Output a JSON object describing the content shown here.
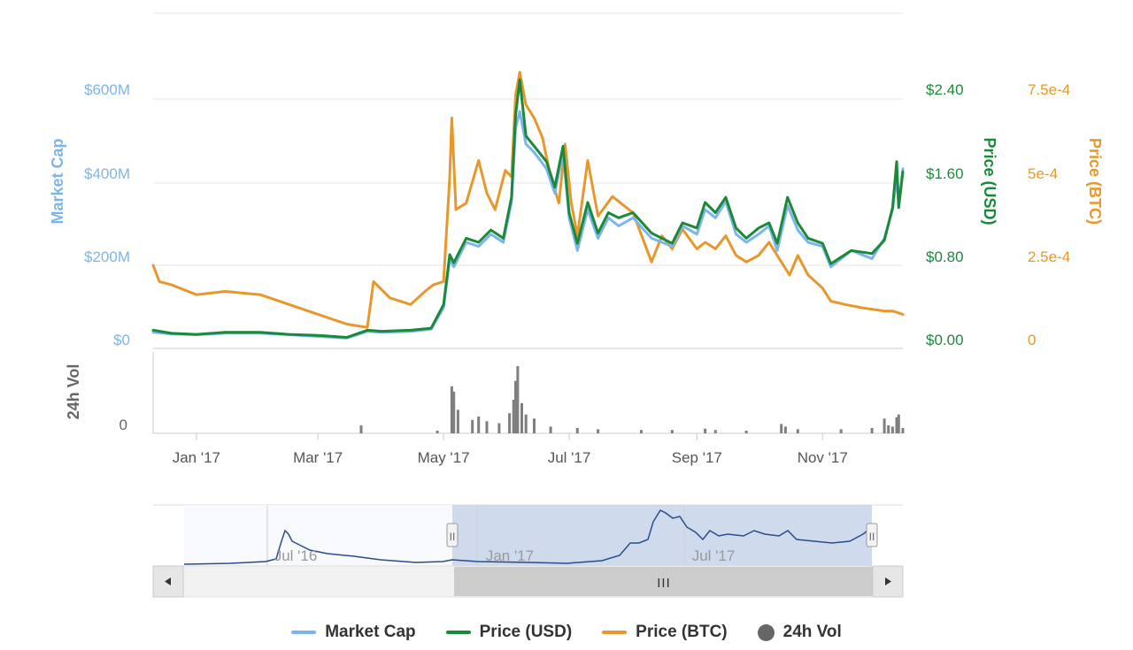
{
  "chart_data": {
    "type": "line",
    "title": "",
    "x_ticks": [
      "Jan '17",
      "Mar '17",
      "May '17",
      "Jul '17",
      "Sep '17",
      "Nov '17"
    ],
    "x_range": [
      "2016-12-11",
      "2017-12-10"
    ],
    "axes": {
      "market_cap": {
        "label": "Market Cap",
        "ticks": [
          "$0",
          "$200M",
          "$400M",
          "$600M"
        ],
        "range": [
          0,
          800000000
        ],
        "color": "#7cb5ec"
      },
      "price_usd": {
        "label": "Price (USD)",
        "ticks": [
          "$0.00",
          "$0.80",
          "$1.60",
          "$2.40"
        ],
        "range": [
          0,
          3.2
        ],
        "color": "#1a8a3a"
      },
      "price_btc": {
        "label": "Price (BTC)",
        "ticks": [
          "0",
          "2.5e-4",
          "5e-4",
          "7.5e-4"
        ],
        "range": [
          0,
          0.001
        ],
        "color": "#e8972a"
      },
      "volume": {
        "label": "24h Vol",
        "ticks": [
          "0"
        ],
        "color": "#666666"
      }
    },
    "series": [
      {
        "name": "Market Cap",
        "color": "#7cb5ec",
        "x": [
          "2016-12-11",
          "2016-12-20",
          "2017-01-01",
          "2017-01-15",
          "2017-02-01",
          "2017-02-15",
          "2017-03-01",
          "2017-03-15",
          "2017-03-25",
          "2017-04-01",
          "2017-04-15",
          "2017-04-25",
          "2017-05-01",
          "2017-05-04",
          "2017-05-06",
          "2017-05-12",
          "2017-05-18",
          "2017-05-24",
          "2017-05-30",
          "2017-06-03",
          "2017-06-05",
          "2017-06-07",
          "2017-06-10",
          "2017-06-14",
          "2017-06-20",
          "2017-06-24",
          "2017-06-28",
          "2017-07-01",
          "2017-07-05",
          "2017-07-10",
          "2017-07-15",
          "2017-07-20",
          "2017-07-25",
          "2017-08-01",
          "2017-08-10",
          "2017-08-20",
          "2017-08-25",
          "2017-09-01",
          "2017-09-05",
          "2017-09-10",
          "2017-09-15",
          "2017-09-20",
          "2017-09-25",
          "2017-10-01",
          "2017-10-06",
          "2017-10-10",
          "2017-10-15",
          "2017-10-20",
          "2017-10-25",
          "2017-11-01",
          "2017-11-05",
          "2017-11-15",
          "2017-11-25",
          "2017-12-01",
          "2017-12-05",
          "2017-12-07",
          "2017-12-08",
          "2017-12-10"
        ],
        "values": [
          20000000,
          16000000,
          14000000,
          18000000,
          18000000,
          14000000,
          10000000,
          6000000,
          22000000,
          20000000,
          22000000,
          28000000,
          80000000,
          200000000,
          180000000,
          240000000,
          230000000,
          260000000,
          240000000,
          340000000,
          520000000,
          560000000,
          480000000,
          460000000,
          420000000,
          360000000,
          460000000,
          300000000,
          220000000,
          320000000,
          250000000,
          300000000,
          280000000,
          300000000,
          250000000,
          230000000,
          280000000,
          260000000,
          320000000,
          300000000,
          340000000,
          260000000,
          240000000,
          260000000,
          280000000,
          220000000,
          330000000,
          270000000,
          240000000,
          230000000,
          180000000,
          220000000,
          200000000,
          250000000,
          320000000,
          400000000,
          330000000,
          420000000
        ]
      },
      {
        "name": "Price (USD)",
        "color": "#1a8a3a",
        "x": [
          "2016-12-11",
          "2016-12-20",
          "2017-01-01",
          "2017-01-15",
          "2017-02-01",
          "2017-02-15",
          "2017-03-01",
          "2017-03-15",
          "2017-03-25",
          "2017-04-01",
          "2017-04-15",
          "2017-04-25",
          "2017-05-01",
          "2017-05-04",
          "2017-05-06",
          "2017-05-12",
          "2017-05-18",
          "2017-05-24",
          "2017-05-30",
          "2017-06-03",
          "2017-06-05",
          "2017-06-07",
          "2017-06-10",
          "2017-06-14",
          "2017-06-20",
          "2017-06-24",
          "2017-06-28",
          "2017-07-01",
          "2017-07-05",
          "2017-07-10",
          "2017-07-15",
          "2017-07-20",
          "2017-07-25",
          "2017-08-01",
          "2017-08-10",
          "2017-08-20",
          "2017-08-25",
          "2017-09-01",
          "2017-09-05",
          "2017-09-10",
          "2017-09-15",
          "2017-09-20",
          "2017-09-25",
          "2017-10-01",
          "2017-10-06",
          "2017-10-10",
          "2017-10-15",
          "2017-10-20",
          "2017-10-25",
          "2017-11-01",
          "2017-11-05",
          "2017-11-15",
          "2017-11-25",
          "2017-12-01",
          "2017-12-05",
          "2017-12-07",
          "2017-12-08",
          "2017-12-10"
        ],
        "values": [
          0.1,
          0.07,
          0.06,
          0.08,
          0.08,
          0.06,
          0.05,
          0.03,
          0.1,
          0.09,
          0.1,
          0.12,
          0.35,
          0.84,
          0.76,
          1.0,
          0.96,
          1.08,
          1.0,
          1.4,
          2.2,
          2.55,
          2.0,
          1.9,
          1.75,
          1.5,
          1.9,
          1.25,
          0.95,
          1.35,
          1.05,
          1.25,
          1.2,
          1.25,
          1.05,
          0.95,
          1.15,
          1.1,
          1.35,
          1.25,
          1.4,
          1.1,
          1.0,
          1.1,
          1.15,
          0.95,
          1.4,
          1.15,
          1.0,
          0.95,
          0.75,
          0.88,
          0.85,
          0.98,
          1.3,
          1.75,
          1.3,
          1.65
        ]
      },
      {
        "name": "Price (BTC)",
        "color": "#e8972a",
        "x": [
          "2016-12-11",
          "2016-12-14",
          "2016-12-20",
          "2017-01-01",
          "2017-01-15",
          "2017-02-01",
          "2017-02-15",
          "2017-03-01",
          "2017-03-15",
          "2017-03-25",
          "2017-03-28",
          "2017-04-05",
          "2017-04-15",
          "2017-04-22",
          "2017-04-26",
          "2017-05-01",
          "2017-05-04",
          "2017-05-05",
          "2017-05-07",
          "2017-05-12",
          "2017-05-18",
          "2017-05-22",
          "2017-05-26",
          "2017-05-31",
          "2017-06-03",
          "2017-06-05",
          "2017-06-07",
          "2017-06-10",
          "2017-06-14",
          "2017-06-18",
          "2017-06-22",
          "2017-06-26",
          "2017-06-29",
          "2017-07-02",
          "2017-07-05",
          "2017-07-10",
          "2017-07-15",
          "2017-07-22",
          "2017-08-01",
          "2017-08-10",
          "2017-08-15",
          "2017-08-20",
          "2017-08-25",
          "2017-09-01",
          "2017-09-05",
          "2017-09-10",
          "2017-09-15",
          "2017-09-20",
          "2017-09-25",
          "2017-10-01",
          "2017-10-06",
          "2017-10-12",
          "2017-10-16",
          "2017-10-20",
          "2017-10-25",
          "2017-11-01",
          "2017-11-05",
          "2017-11-12",
          "2017-11-20",
          "2017-12-01",
          "2017-12-05",
          "2017-12-10"
        ],
        "values": [
          0.00023,
          0.00018,
          0.00017,
          0.00014,
          0.00015,
          0.00014,
          0.00011,
          8e-05,
          5e-05,
          4e-05,
          0.00018,
          0.00013,
          0.00011,
          0.00015,
          0.00017,
          0.00018,
          0.0005,
          0.00068,
          0.0004,
          0.00042,
          0.00055,
          0.00045,
          0.0004,
          0.00052,
          0.0005,
          0.00075,
          0.00082,
          0.00072,
          0.00068,
          0.00062,
          0.0005,
          0.00042,
          0.0006,
          0.00042,
          0.00032,
          0.00055,
          0.00038,
          0.00044,
          0.00039,
          0.00024,
          0.00032,
          0.00028,
          0.00034,
          0.00028,
          0.0003,
          0.00028,
          0.00032,
          0.00026,
          0.00024,
          0.00026,
          0.0003,
          0.00024,
          0.0002,
          0.00026,
          0.0002,
          0.00016,
          0.00012,
          0.00011,
          0.0001,
          9e-05,
          9e-05,
          8e-05
        ]
      },
      {
        "name": "24h Vol",
        "color": "#666666",
        "x": [
          "2017-03-22",
          "2017-04-28",
          "2017-05-05",
          "2017-05-06",
          "2017-05-08",
          "2017-05-15",
          "2017-05-18",
          "2017-05-22",
          "2017-05-28",
          "2017-06-02",
          "2017-06-04",
          "2017-06-05",
          "2017-06-06",
          "2017-06-08",
          "2017-06-10",
          "2017-06-14",
          "2017-06-22",
          "2017-07-05",
          "2017-07-15",
          "2017-08-05",
          "2017-08-20",
          "2017-09-05",
          "2017-09-10",
          "2017-09-25",
          "2017-10-12",
          "2017-10-14",
          "2017-10-20",
          "2017-11-10",
          "2017-11-25",
          "2017-12-01",
          "2017-12-03",
          "2017-12-05",
          "2017-12-07",
          "2017-12-08",
          "2017-12-10"
        ],
        "values": [
          12,
          4,
          70,
          62,
          35,
          20,
          25,
          18,
          15,
          30,
          50,
          78,
          100,
          45,
          28,
          22,
          10,
          8,
          6,
          5,
          5,
          7,
          5,
          4,
          14,
          10,
          6,
          6,
          8,
          22,
          12,
          10,
          24,
          28,
          8
        ]
      }
    ],
    "navigator": {
      "x_ticks": [
        "Jul '16",
        "Jan '17",
        "Jul '17"
      ]
    },
    "grid": true,
    "legend_position": "bottom-center"
  },
  "legend": [
    {
      "label": "Market Cap",
      "color": "#7cb5ec",
      "shape": "line"
    },
    {
      "label": "Price (USD)",
      "color": "#1a8a3a",
      "shape": "line"
    },
    {
      "label": "Price (BTC)",
      "color": "#e8972a",
      "shape": "line"
    },
    {
      "label": "24h Vol",
      "color": "#666666",
      "shape": "circle"
    }
  ],
  "navigator_controls": {
    "scroll_left_icon": "chevron-left-icon",
    "scroll_right_icon": "chevron-right-icon",
    "scrollbar_grip": "III",
    "handle_grip": "II"
  }
}
